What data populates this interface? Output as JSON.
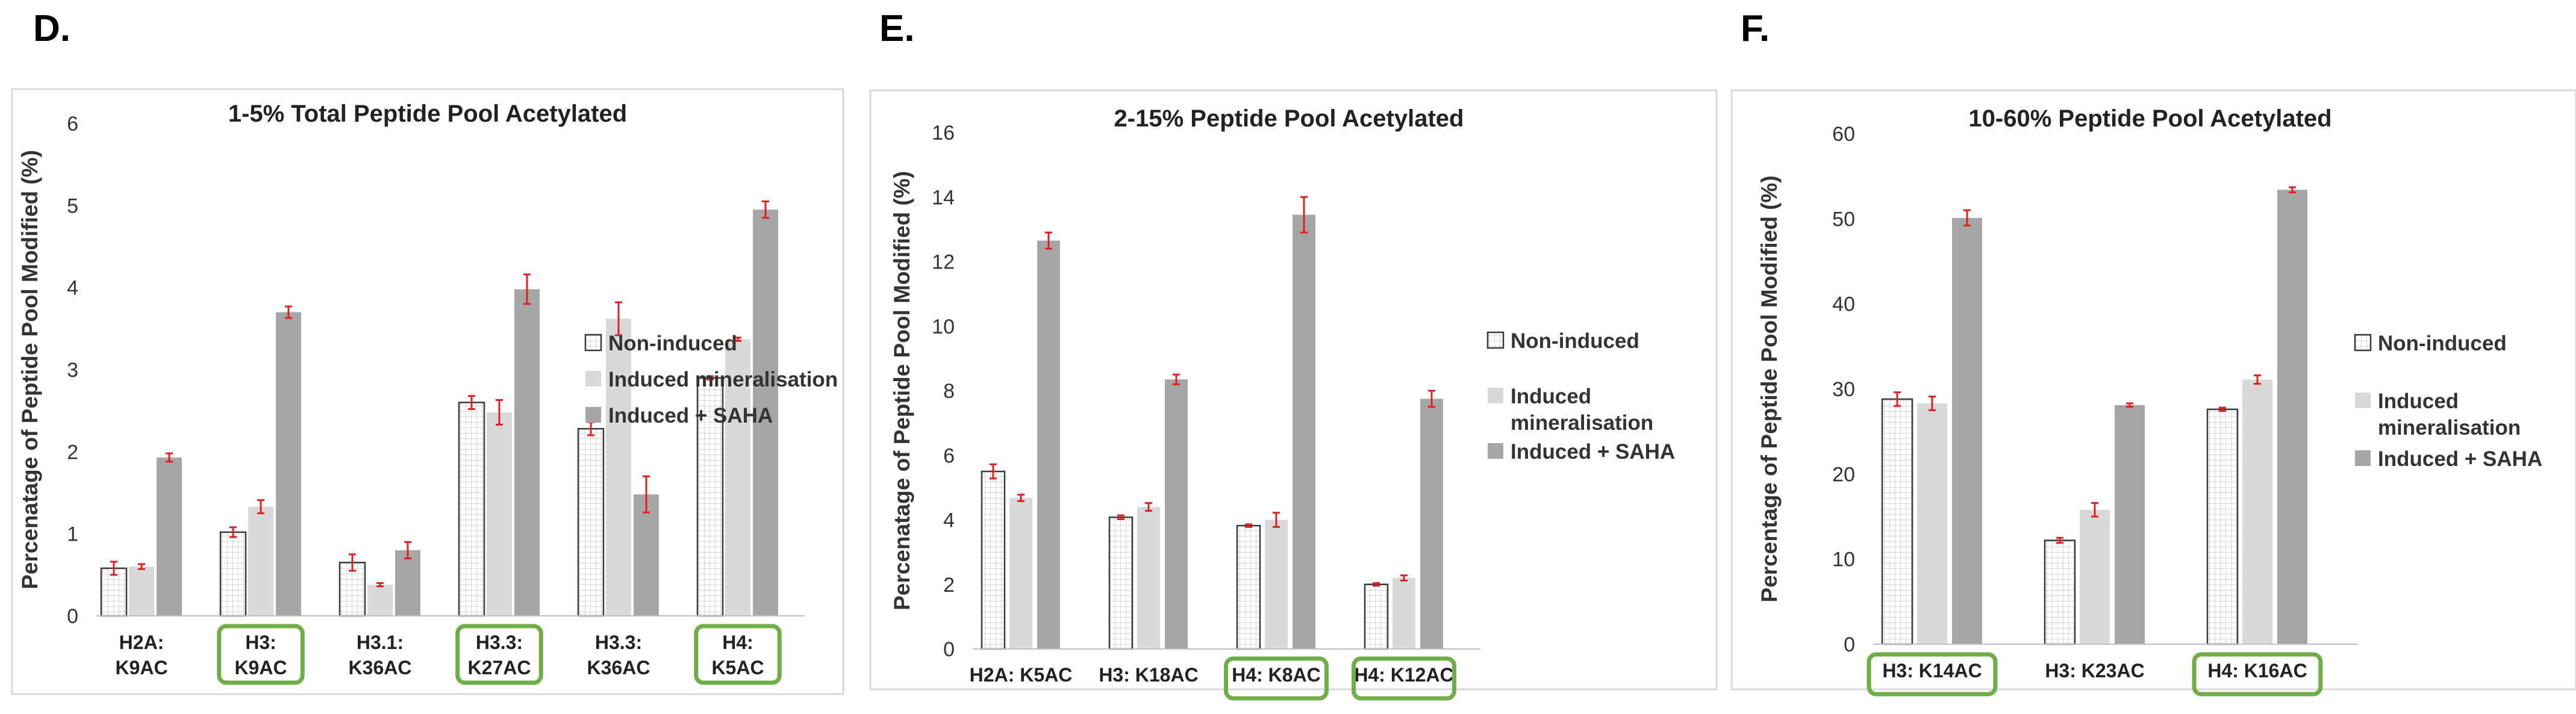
{
  "colors": {
    "noninduced_fill": "#ffffff",
    "grid_pattern": "#c9c9c9",
    "induced_fill": "#d9d9d9",
    "saha_fill": "#a6a6a6",
    "error_bar": "#e02020",
    "highlight_box": "#70ad47",
    "frame": "#d9d9d9"
  },
  "legend": [
    "Non-induced",
    "Induced mineralisation",
    "Induced + SAHA"
  ],
  "chart_data": [
    {
      "panel": "D.",
      "type": "bar",
      "title": "1-5% Total Peptide Pool Acetylated",
      "ylabel": "Percenatage of Peptide Pool Modified (%)",
      "xlabel": "",
      "ylim": [
        0,
        6
      ],
      "yticks": [
        "0",
        "1",
        "2",
        "3",
        "4",
        "5",
        "6"
      ],
      "grid": false,
      "legend_position": "right",
      "categories": [
        {
          "lines": [
            "H2A:",
            "K9AC"
          ],
          "highlight": false
        },
        {
          "lines": [
            "H3:",
            "K9AC"
          ],
          "highlight": true
        },
        {
          "lines": [
            "H3.1:",
            "K36AC"
          ],
          "highlight": false
        },
        {
          "lines": [
            "H3.3:",
            "K27AC"
          ],
          "highlight": true
        },
        {
          "lines": [
            "H3.3:",
            "K36AC"
          ],
          "highlight": false
        },
        {
          "lines": [
            "H4:",
            "K5AC"
          ],
          "highlight": true
        }
      ],
      "series": [
        {
          "name": "Non-induced",
          "values": [
            0.58,
            1.02,
            0.65,
            2.6,
            2.28,
            2.9
          ],
          "errors": [
            0.08,
            0.06,
            0.1,
            0.08,
            0.08,
            0.02
          ]
        },
        {
          "name": "Induced mineralisation",
          "values": [
            0.6,
            1.33,
            0.38,
            2.48,
            3.62,
            3.37
          ],
          "errors": [
            0.03,
            0.08,
            0.02,
            0.15,
            0.2,
            0.02
          ]
        },
        {
          "name": "Induced + SAHA",
          "values": [
            1.93,
            3.7,
            0.8,
            3.98,
            1.48,
            4.95
          ],
          "errors": [
            0.05,
            0.07,
            0.1,
            0.18,
            0.22,
            0.1
          ]
        }
      ]
    },
    {
      "panel": "E.",
      "type": "bar",
      "title": "2-15% Peptide Pool Acetylated",
      "ylabel": "Percenatage of Peptide Pool Modified (%)",
      "xlabel": "",
      "ylim": [
        0,
        16
      ],
      "yticks": [
        "0",
        "2",
        "4",
        "6",
        "8",
        "10",
        "12",
        "14",
        "16"
      ],
      "grid": false,
      "legend_position": "right",
      "categories": [
        {
          "lines": [
            "H2A: K5AC"
          ],
          "highlight": false
        },
        {
          "lines": [
            "H3: K18AC"
          ],
          "highlight": false
        },
        {
          "lines": [
            "H4: K8AC"
          ],
          "highlight": true
        },
        {
          "lines": [
            "H4: K12AC"
          ],
          "highlight": true
        }
      ],
      "series": [
        {
          "name": "Non-induced",
          "values": [
            5.5,
            4.08,
            3.82,
            2.0
          ],
          "errors": [
            0.22,
            0.06,
            0.04,
            0.04
          ]
        },
        {
          "name": "Induced mineralisation",
          "values": [
            4.68,
            4.4,
            4.0,
            2.2
          ],
          "errors": [
            0.1,
            0.12,
            0.22,
            0.08
          ]
        },
        {
          "name": "Induced + SAHA",
          "values": [
            12.65,
            8.35,
            13.45,
            7.75
          ],
          "errors": [
            0.25,
            0.15,
            0.55,
            0.25
          ]
        }
      ]
    },
    {
      "panel": "F.",
      "type": "bar",
      "title": "10-60% Peptide Pool Acetylated",
      "ylabel": "Percentage of Peptide Pool Modified (%)",
      "xlabel": "",
      "ylim": [
        0,
        60
      ],
      "yticks": [
        "0",
        "10",
        "20",
        "30",
        "40",
        "50",
        "60"
      ],
      "grid": false,
      "legend_position": "right",
      "categories": [
        {
          "lines": [
            "H3: K14AC"
          ],
          "highlight": true
        },
        {
          "lines": [
            "H3: K23AC"
          ],
          "highlight": false
        },
        {
          "lines": [
            "H4: K16AC"
          ],
          "highlight": true
        }
      ],
      "series": [
        {
          "name": "Non-induced",
          "values": [
            28.8,
            12.2,
            27.6
          ],
          "errors": [
            0.8,
            0.3,
            0.2
          ]
        },
        {
          "name": "Induced mineralisation",
          "values": [
            28.3,
            15.8,
            31.1
          ],
          "errors": [
            0.8,
            0.8,
            0.5
          ]
        },
        {
          "name": "Induced + SAHA",
          "values": [
            50.1,
            28.1,
            53.4
          ],
          "errors": [
            0.9,
            0.2,
            0.3
          ]
        }
      ]
    }
  ]
}
